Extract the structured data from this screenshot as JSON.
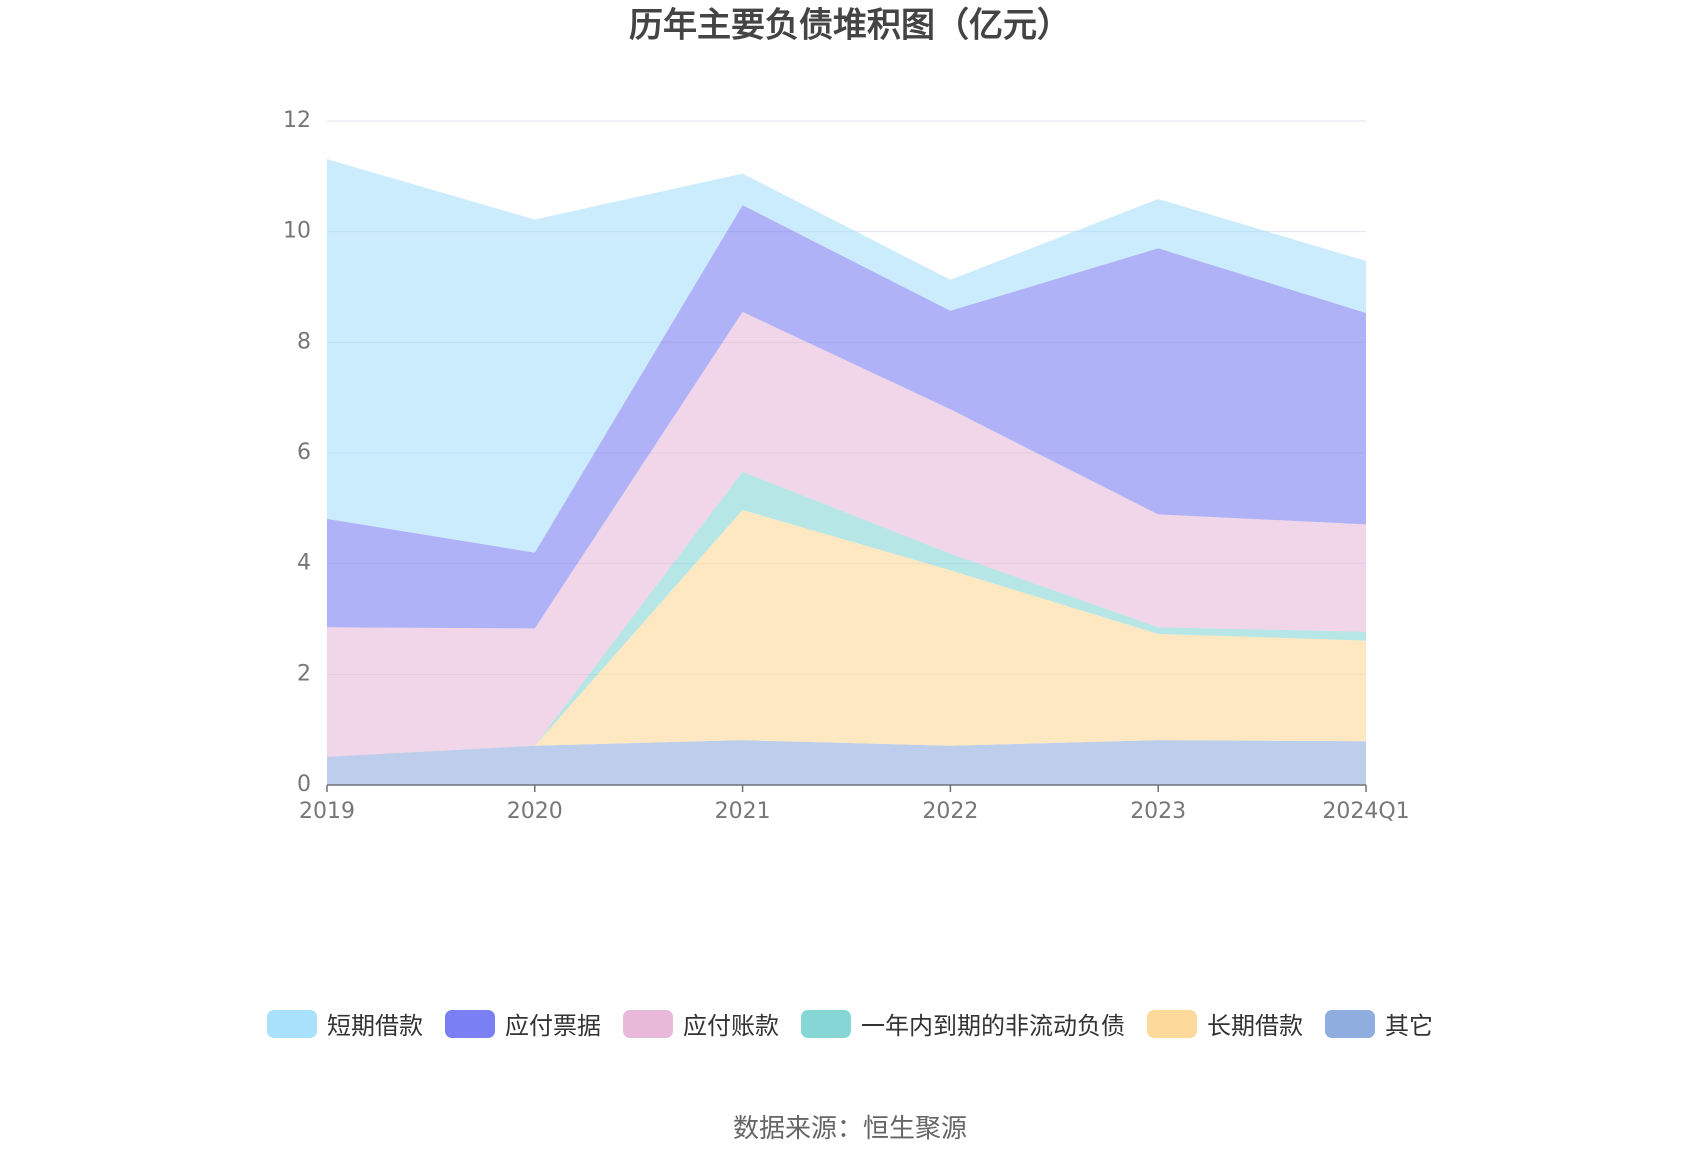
{
  "chart_data": {
    "type": "stacked-area",
    "title": "历年主要负债堆积图（亿元）",
    "source": "数据来源：恒生聚源",
    "categories": [
      "2019",
      "2020",
      "2021",
      "2022",
      "2023",
      "2024Q1"
    ],
    "series": [
      {
        "name": "其它",
        "color": "#8fadde",
        "values": [
          0.51,
          0.71,
          0.81,
          0.71,
          0.81,
          0.79
        ]
      },
      {
        "name": "长期借款",
        "color": "#fdd99a",
        "values": [
          0,
          0,
          4.16,
          3.17,
          1.92,
          1.82
        ]
      },
      {
        "name": "一年内到期的非流动负债",
        "color": "#86d6d6",
        "values": [
          0,
          0,
          0.69,
          0.3,
          0.12,
          0.16
        ]
      },
      {
        "name": "应付账款",
        "color": "#e8b9d8",
        "values": [
          2.34,
          2.12,
          2.89,
          2.61,
          2.04,
          1.94
        ]
      },
      {
        "name": "应付票据",
        "color": "#7b7ff4",
        "values": [
          1.96,
          1.37,
          1.93,
          1.78,
          4.81,
          3.82
        ]
      },
      {
        "name": "短期借款",
        "color": "#a9e0fb",
        "values": [
          6.5,
          6.02,
          0.57,
          0.56,
          0.89,
          0.94
        ]
      }
    ],
    "legend_order": [
      5,
      4,
      3,
      2,
      1,
      0
    ],
    "ylim": [
      0,
      12
    ],
    "yticks": [
      0,
      2,
      4,
      6,
      8,
      10,
      12
    ],
    "grid": true
  }
}
